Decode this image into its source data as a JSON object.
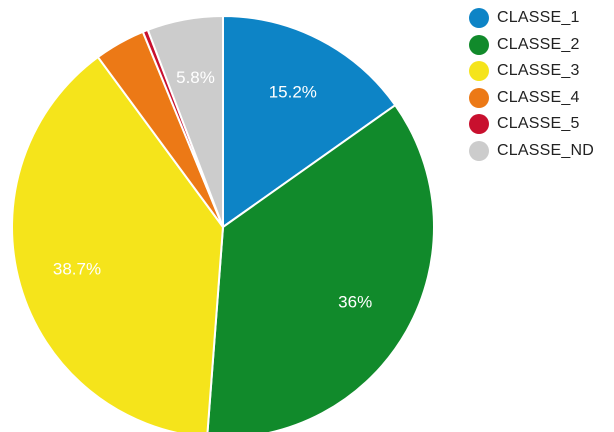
{
  "chart_data": {
    "type": "pie",
    "start_angle_deg": 0,
    "direction": "clockwise",
    "slices": [
      {
        "name": "CLASSE_1",
        "value": 15.2,
        "label": "15.2%",
        "color": "#0d84c6"
      },
      {
        "name": "CLASSE_2",
        "value": 36.0,
        "label": "36%",
        "color": "#118a2b"
      },
      {
        "name": "CLASSE_3",
        "value": 38.7,
        "label": "38.7%",
        "color": "#f5e41b"
      },
      {
        "name": "CLASSE_4",
        "value": 3.9,
        "label": "",
        "color": "#ec7916"
      },
      {
        "name": "CLASSE_5",
        "value": 0.4,
        "label": "",
        "color": "#c8102e"
      },
      {
        "name": "CLASSE_ND",
        "value": 5.8,
        "label": "5.8%",
        "color": "#cccccc"
      }
    ],
    "legend": {
      "placement": "top-right",
      "entries": [
        "CLASSE_1",
        "CLASSE_2",
        "CLASSE_3",
        "CLASSE_4",
        "CLASSE_5",
        "CLASSE_ND"
      ]
    }
  }
}
